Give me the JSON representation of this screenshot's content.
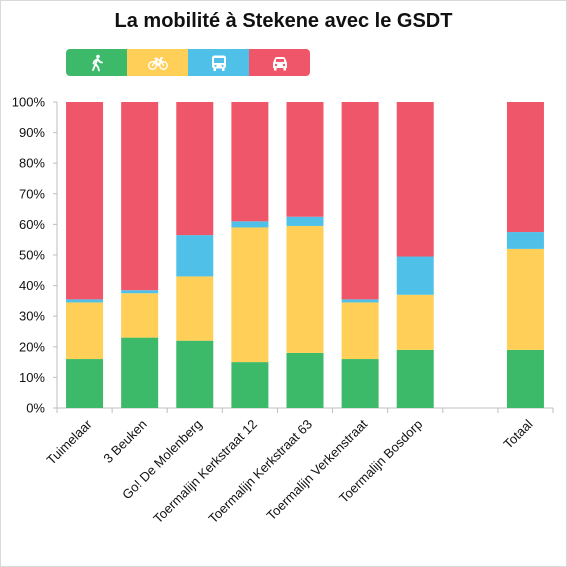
{
  "chart_data": {
    "type": "bar",
    "stacked": true,
    "title": "La mobilité à Stekene avec le GSDT",
    "categories": [
      "Tuimelaar",
      "3 Beuken",
      "Go! De Molenberg",
      "Toermalijn Kerkstraat 12",
      "Toermalijn Kerkstraat 63",
      "Toermalijn Verkenstraat",
      "Toermalijn Bosdorp",
      "",
      "Totaal"
    ],
    "series": [
      {
        "icon": "walking-person-icon",
        "color": "#3cba6a",
        "values": [
          16,
          23,
          22,
          15,
          18,
          16,
          19,
          null,
          19
        ]
      },
      {
        "icon": "bicycle-icon",
        "color": "#ffcf57",
        "values": [
          18.5,
          14.5,
          21,
          44,
          41.5,
          18.5,
          18,
          null,
          33
        ]
      },
      {
        "icon": "bus-icon",
        "color": "#4fc1e9",
        "values": [
          1,
          1,
          13.5,
          2,
          3,
          1,
          12.5,
          null,
          5.5
        ]
      },
      {
        "icon": "car-icon",
        "color": "#f0566a",
        "values": [
          64.5,
          61.5,
          43.5,
          39,
          37.5,
          64.5,
          50.5,
          null,
          42.5
        ]
      }
    ],
    "ylim": [
      0,
      100
    ],
    "yticks": [
      "0%",
      "10%",
      "20%",
      "30%",
      "40%",
      "50%",
      "60%",
      "70%",
      "80%",
      "90%",
      "100%"
    ],
    "grid": false,
    "legend": "top-left"
  }
}
